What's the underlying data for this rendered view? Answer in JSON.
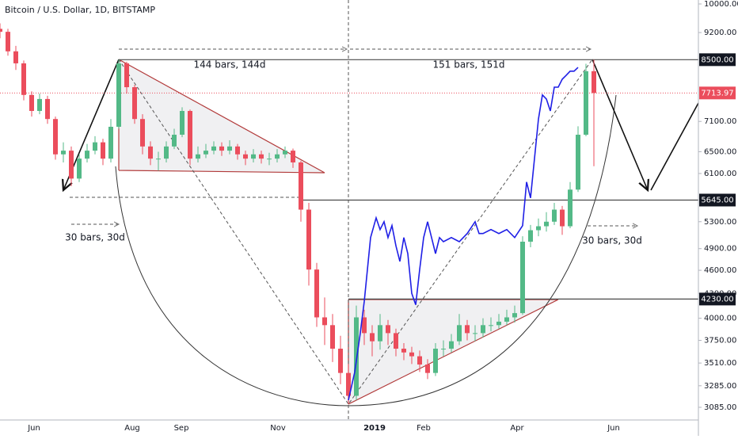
{
  "chart_data": {
    "type": "candlestick",
    "title": "Bitcoin / U.S. Dollar, 1D, BITSTAMP",
    "log_scale": true,
    "grid": true,
    "up_color": "#53b987",
    "down_color": "#eb4d5c",
    "xlim": [
      0,
      441
    ],
    "ylim": [
      2973,
      10116
    ],
    "xticks": [
      {
        "value": 21.5,
        "label": "Jun"
      },
      {
        "value": 83.5,
        "label": "Aug"
      },
      {
        "value": 114.5,
        "label": "Sep"
      },
      {
        "value": 175.5,
        "label": "Nov"
      },
      {
        "value": 236.5,
        "label": "2019"
      },
      {
        "value": 267.5,
        "label": "Feb"
      },
      {
        "value": 326.5,
        "label": "Apr"
      },
      {
        "value": 387.5,
        "label": "Jun"
      }
    ],
    "yticks": [
      {
        "value": 10000,
        "label": "10000.00"
      },
      {
        "value": 9200,
        "label": "9200.00"
      },
      {
        "value": 7100,
        "label": "7100.00"
      },
      {
        "value": 6500,
        "label": "6500.00"
      },
      {
        "value": 6100,
        "label": "6100.00"
      },
      {
        "value": 5300,
        "label": "5300.00"
      },
      {
        "value": 4900,
        "label": "4900.00"
      },
      {
        "value": 4600,
        "label": "4600.00"
      },
      {
        "value": 4300,
        "label": "4300.00"
      },
      {
        "value": 4000,
        "label": "4000.00"
      },
      {
        "value": 3750,
        "label": "3750.00"
      },
      {
        "value": 3510,
        "label": "3510.00"
      },
      {
        "value": 3285,
        "label": "3285.00"
      },
      {
        "value": 3085,
        "label": "3085.00"
      }
    ],
    "levels": [
      {
        "value": 8500,
        "label": "8500.00"
      },
      {
        "value": 5645,
        "label": "5645.00"
      },
      {
        "value": 4230,
        "label": "4230.00"
      }
    ],
    "last_price": {
      "value": 7713.97,
      "label": "7713.97",
      "color": "#eb4d5c"
    },
    "annotations": [
      "144 bars, 144d",
      "151 bars, 151d",
      "30 bars, 30d",
      "30 bars, 30d"
    ],
    "x": [
      0,
      5,
      10,
      15,
      20,
      25,
      30,
      35,
      40,
      45,
      50,
      55,
      60,
      65,
      70,
      75,
      80,
      85,
      90,
      95,
      100,
      105,
      110,
      115,
      120,
      125,
      130,
      135,
      140,
      145,
      150,
      155,
      160,
      165,
      170,
      175,
      180,
      185,
      190,
      195,
      200,
      205,
      210,
      215,
      220,
      225,
      230,
      235,
      240,
      245,
      250,
      255,
      260,
      265,
      270,
      275,
      280,
      285,
      290,
      295,
      300,
      305,
      310,
      315,
      320,
      325,
      330,
      335,
      340,
      345,
      350,
      355,
      360,
      365,
      370,
      375
    ],
    "open": [
      9300,
      9220,
      8710,
      8410,
      7670,
      7320,
      7580,
      7150,
      6450,
      6520,
      6010,
      6370,
      6520,
      6680,
      6370,
      6990,
      8410,
      7845,
      7150,
      6600,
      6370,
      6370,
      6600,
      6830,
      7320,
      6370,
      6450,
      6520,
      6600,
      6520,
      6600,
      6450,
      6370,
      6450,
      6370,
      6370,
      6450,
      6520,
      6300,
      5490,
      4610,
      4010,
      3920,
      3660,
      3410,
      3190,
      4010,
      3830,
      3740,
      3920,
      3830,
      3660,
      3620,
      3580,
      3495,
      3410,
      3660,
      3660,
      3740,
      3920,
      3830,
      3830,
      3920,
      3920,
      3960,
      4010,
      4060,
      5000,
      5170,
      5230,
      5300,
      5490,
      5230,
      5820,
      6830,
      8220
    ],
    "high": [
      9450,
      9300,
      8850,
      8480,
      7750,
      7700,
      7650,
      7200,
      6680,
      6600,
      6450,
      6650,
      6800,
      6750,
      7150,
      8500,
      8450,
      7900,
      7250,
      6700,
      6500,
      6700,
      6950,
      7400,
      7350,
      6600,
      6650,
      6700,
      6680,
      6720,
      6650,
      6520,
      6550,
      6520,
      6480,
      6550,
      6600,
      6560,
      6330,
      5600,
      4700,
      4250,
      4050,
      3800,
      3500,
      4150,
      4100,
      3920,
      4050,
      3980,
      3880,
      3720,
      3680,
      3640,
      3550,
      3720,
      3750,
      3820,
      4050,
      3980,
      3920,
      4000,
      4010,
      4050,
      4100,
      4150,
      5080,
      5250,
      5350,
      5450,
      5600,
      5550,
      5950,
      7000,
      8400,
      8500
    ],
    "low": [
      9050,
      8600,
      8250,
      7550,
      7200,
      7250,
      7050,
      6350,
      6300,
      5880,
      5950,
      6300,
      6450,
      6250,
      6300,
      6950,
      7700,
      7050,
      6450,
      6250,
      6150,
      6300,
      6550,
      6780,
      6250,
      6300,
      6380,
      6450,
      6420,
      6450,
      6350,
      6250,
      6300,
      6280,
      6250,
      6300,
      6380,
      6200,
      5300,
      4400,
      3900,
      3700,
      3520,
      3300,
      3120,
      3150,
      3700,
      3580,
      3650,
      3700,
      3580,
      3540,
      3500,
      3420,
      3350,
      3380,
      3580,
      3620,
      3700,
      3750,
      3740,
      3780,
      3850,
      3880,
      3920,
      3950,
      4040,
      4920,
      5080,
      5150,
      5250,
      5100,
      5200,
      5780,
      6800,
      6230
    ],
    "close": [
      9220,
      8710,
      8410,
      7670,
      7320,
      7580,
      7150,
      6450,
      6520,
      6010,
      6370,
      6520,
      6680,
      6370,
      6990,
      8410,
      7845,
      7150,
      6600,
      6370,
      6370,
      6600,
      6830,
      7320,
      6370,
      6450,
      6520,
      6600,
      6520,
      6600,
      6450,
      6370,
      6450,
      6370,
      6370,
      6450,
      6520,
      6300,
      5490,
      4610,
      4010,
      3920,
      3660,
      3410,
      3190,
      4010,
      3830,
      3740,
      3920,
      3830,
      3660,
      3620,
      3580,
      3495,
      3410,
      3660,
      3660,
      3740,
      3920,
      3830,
      3830,
      3920,
      3920,
      3960,
      4010,
      4060,
      5000,
      5170,
      5230,
      5300,
      5490,
      5230,
      5820,
      6830,
      8220,
      7714
    ],
    "overlay": {
      "color": "#1f1fe6",
      "x": [
        220,
        224,
        227.5,
        230,
        234,
        237.5,
        240,
        242.5,
        245,
        247.5,
        250,
        252.5,
        255,
        257.5,
        260,
        262.5,
        265,
        267.5,
        270,
        272.5,
        275,
        277.5,
        280,
        285,
        290,
        295,
        300,
        302.5,
        305,
        310,
        315,
        320,
        325,
        330,
        332.5,
        335,
        340,
        342.5,
        345,
        347.5,
        350,
        352.5,
        355,
        357.5,
        360,
        362.5,
        365
      ],
      "values": [
        3150,
        3420,
        3830,
        4200,
        5060,
        5360,
        5180,
        5300,
        5060,
        5240,
        4940,
        4720,
        5060,
        4830,
        4300,
        4160,
        4610,
        5060,
        5300,
        5060,
        4830,
        5060,
        5000,
        5060,
        5000,
        5120,
        5300,
        5120,
        5120,
        5180,
        5120,
        5180,
        5060,
        5240,
        5950,
        5680,
        7150,
        7670,
        7580,
        7320,
        7845,
        7845,
        8030,
        8120,
        8220,
        8220,
        8310
      ]
    }
  }
}
